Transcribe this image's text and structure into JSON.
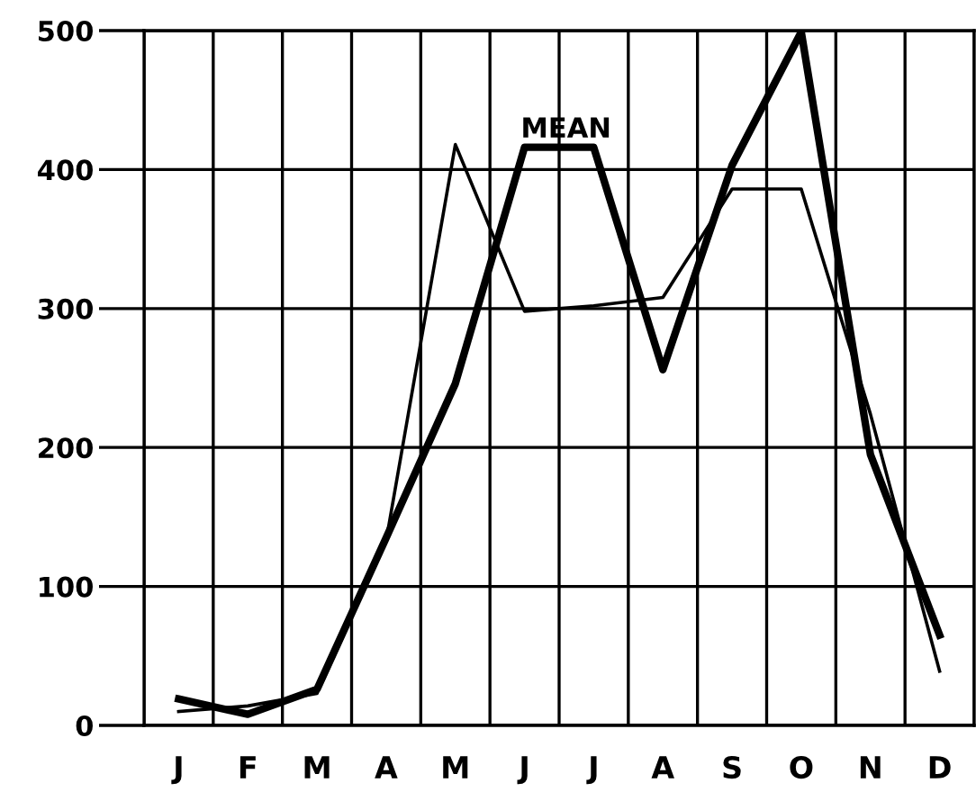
{
  "chart_data": {
    "type": "line",
    "categories": [
      "J",
      "F",
      "M",
      "A",
      "M",
      "J",
      "J",
      "A",
      "S",
      "O",
      "N",
      "D"
    ],
    "series": [
      {
        "name": "MEAN",
        "color": "#000000",
        "values": [
          19,
          8,
          26,
          135,
          246,
          416,
          416,
          256,
          403,
          499,
          195,
          65
        ]
      },
      {
        "color": "#000000",
        "values": [
          10,
          14,
          23,
          133,
          418,
          298,
          302,
          308,
          386,
          386,
          224,
          39
        ]
      }
    ],
    "ylim": [
      0,
      500
    ],
    "yticks": [
      0,
      100,
      200,
      300,
      400,
      500
    ],
    "grid": true,
    "legend": false,
    "marker": "none",
    "line_style": "solid"
  }
}
